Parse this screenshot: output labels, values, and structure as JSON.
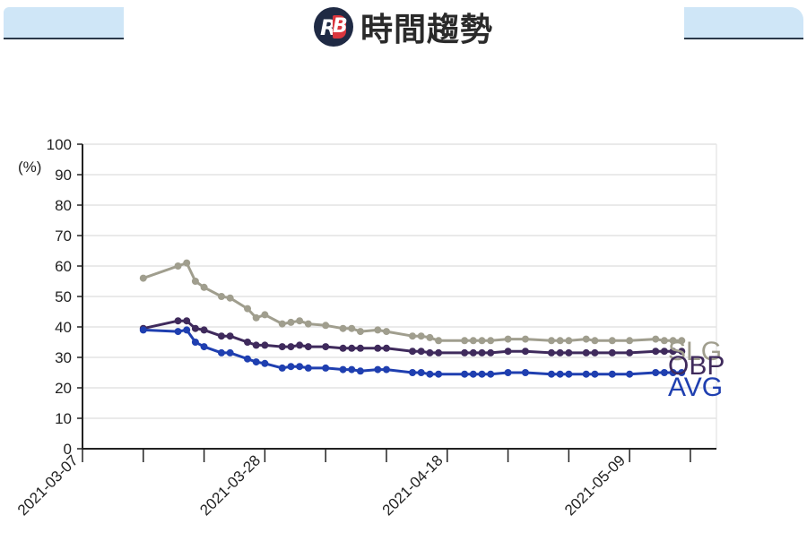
{
  "header": {
    "logo_r": "R",
    "logo_b": "B",
    "title": "時間趨勢"
  },
  "chart_data": {
    "type": "line",
    "unit_label": "(%)",
    "ylim": [
      0,
      100
    ],
    "yticks": [
      "0",
      "10",
      "20",
      "30",
      "40",
      "50",
      "60",
      "70",
      "80",
      "90",
      "100"
    ],
    "xlim": [
      "2021-03-07",
      "2021-05-19"
    ],
    "xticks": [
      "2021-03-07",
      "2021-03-14",
      "2021-03-21",
      "2021-03-28",
      "2021-04-04",
      "2021-04-11",
      "2021-04-18",
      "2021-04-25",
      "2021-05-02",
      "2021-05-09",
      "2021-05-16"
    ],
    "xtick_labels": [
      "2021-03-07",
      "",
      "",
      "2021-03-28",
      "",
      "",
      "2021-04-18",
      "",
      "",
      "2021-05-09",
      ""
    ],
    "grid": true,
    "series": [
      {
        "name": "SLG",
        "color": "#a09e8e",
        "points": [
          [
            "2021-03-14",
            56.0
          ],
          [
            "2021-03-18",
            60.0
          ],
          [
            "2021-03-19",
            61.0
          ],
          [
            "2021-03-20",
            55.0
          ],
          [
            "2021-03-21",
            53.0
          ],
          [
            "2021-03-23",
            50.0
          ],
          [
            "2021-03-24",
            49.5
          ],
          [
            "2021-03-26",
            46.0
          ],
          [
            "2021-03-27",
            43.0
          ],
          [
            "2021-03-28",
            44.0
          ],
          [
            "2021-03-30",
            41.0
          ],
          [
            "2021-03-31",
            41.5
          ],
          [
            "2021-04-01",
            42.0
          ],
          [
            "2021-04-02",
            41.0
          ],
          [
            "2021-04-04",
            40.5
          ],
          [
            "2021-04-06",
            39.5
          ],
          [
            "2021-04-07",
            39.5
          ],
          [
            "2021-04-08",
            38.5
          ],
          [
            "2021-04-10",
            39.0
          ],
          [
            "2021-04-11",
            38.5
          ],
          [
            "2021-04-14",
            37.0
          ],
          [
            "2021-04-15",
            37.0
          ],
          [
            "2021-04-16",
            36.5
          ],
          [
            "2021-04-17",
            35.5
          ],
          [
            "2021-04-20",
            35.5
          ],
          [
            "2021-04-21",
            35.5
          ],
          [
            "2021-04-22",
            35.5
          ],
          [
            "2021-04-23",
            35.5
          ],
          [
            "2021-04-25",
            36.0
          ],
          [
            "2021-04-27",
            36.0
          ],
          [
            "2021-04-30",
            35.5
          ],
          [
            "2021-05-01",
            35.5
          ],
          [
            "2021-05-02",
            35.5
          ],
          [
            "2021-05-04",
            36.0
          ],
          [
            "2021-05-05",
            35.5
          ],
          [
            "2021-05-07",
            35.5
          ],
          [
            "2021-05-09",
            35.5
          ],
          [
            "2021-05-12",
            36.0
          ],
          [
            "2021-05-13",
            35.5
          ],
          [
            "2021-05-14",
            35.5
          ],
          [
            "2021-05-15",
            35.5
          ]
        ]
      },
      {
        "name": "OBP",
        "color": "#3f2a5c",
        "points": [
          [
            "2021-03-14",
            39.5
          ],
          [
            "2021-03-18",
            42.0
          ],
          [
            "2021-03-19",
            42.0
          ],
          [
            "2021-03-20",
            39.5
          ],
          [
            "2021-03-21",
            39.0
          ],
          [
            "2021-03-23",
            37.0
          ],
          [
            "2021-03-24",
            37.0
          ],
          [
            "2021-03-26",
            35.0
          ],
          [
            "2021-03-27",
            34.0
          ],
          [
            "2021-03-28",
            34.0
          ],
          [
            "2021-03-30",
            33.5
          ],
          [
            "2021-03-31",
            33.5
          ],
          [
            "2021-04-01",
            34.0
          ],
          [
            "2021-04-02",
            33.5
          ],
          [
            "2021-04-04",
            33.5
          ],
          [
            "2021-04-06",
            33.0
          ],
          [
            "2021-04-07",
            33.0
          ],
          [
            "2021-04-08",
            33.0
          ],
          [
            "2021-04-10",
            33.0
          ],
          [
            "2021-04-11",
            33.0
          ],
          [
            "2021-04-14",
            32.0
          ],
          [
            "2021-04-15",
            32.0
          ],
          [
            "2021-04-16",
            31.5
          ],
          [
            "2021-04-17",
            31.5
          ],
          [
            "2021-04-20",
            31.5
          ],
          [
            "2021-04-21",
            31.5
          ],
          [
            "2021-04-22",
            31.5
          ],
          [
            "2021-04-23",
            31.5
          ],
          [
            "2021-04-25",
            32.0
          ],
          [
            "2021-04-27",
            32.0
          ],
          [
            "2021-04-30",
            31.5
          ],
          [
            "2021-05-01",
            31.5
          ],
          [
            "2021-05-02",
            31.5
          ],
          [
            "2021-05-04",
            31.5
          ],
          [
            "2021-05-05",
            31.5
          ],
          [
            "2021-05-07",
            31.5
          ],
          [
            "2021-05-09",
            31.5
          ],
          [
            "2021-05-12",
            32.0
          ],
          [
            "2021-05-13",
            32.0
          ],
          [
            "2021-05-14",
            32.0
          ],
          [
            "2021-05-15",
            32.0
          ]
        ]
      },
      {
        "name": "AVG",
        "color": "#1f3fb0",
        "points": [
          [
            "2021-03-14",
            39.0
          ],
          [
            "2021-03-18",
            38.5
          ],
          [
            "2021-03-19",
            39.0
          ],
          [
            "2021-03-20",
            35.0
          ],
          [
            "2021-03-21",
            33.5
          ],
          [
            "2021-03-23",
            31.5
          ],
          [
            "2021-03-24",
            31.5
          ],
          [
            "2021-03-26",
            29.5
          ],
          [
            "2021-03-27",
            28.5
          ],
          [
            "2021-03-28",
            28.0
          ],
          [
            "2021-03-30",
            26.5
          ],
          [
            "2021-03-31",
            27.0
          ],
          [
            "2021-04-01",
            27.0
          ],
          [
            "2021-04-02",
            26.5
          ],
          [
            "2021-04-04",
            26.5
          ],
          [
            "2021-04-06",
            26.0
          ],
          [
            "2021-04-07",
            26.0
          ],
          [
            "2021-04-08",
            25.5
          ],
          [
            "2021-04-10",
            26.0
          ],
          [
            "2021-04-11",
            26.0
          ],
          [
            "2021-04-14",
            25.0
          ],
          [
            "2021-04-15",
            25.0
          ],
          [
            "2021-04-16",
            24.5
          ],
          [
            "2021-04-17",
            24.5
          ],
          [
            "2021-04-20",
            24.5
          ],
          [
            "2021-04-21",
            24.5
          ],
          [
            "2021-04-22",
            24.5
          ],
          [
            "2021-04-23",
            24.5
          ],
          [
            "2021-04-25",
            25.0
          ],
          [
            "2021-04-27",
            25.0
          ],
          [
            "2021-04-30",
            24.5
          ],
          [
            "2021-05-01",
            24.5
          ],
          [
            "2021-05-02",
            24.5
          ],
          [
            "2021-05-04",
            24.5
          ],
          [
            "2021-05-05",
            24.5
          ],
          [
            "2021-05-07",
            24.5
          ],
          [
            "2021-05-09",
            24.5
          ],
          [
            "2021-05-12",
            25.0
          ],
          [
            "2021-05-13",
            25.0
          ],
          [
            "2021-05-14",
            25.0
          ],
          [
            "2021-05-15",
            25.0
          ]
        ]
      }
    ]
  }
}
